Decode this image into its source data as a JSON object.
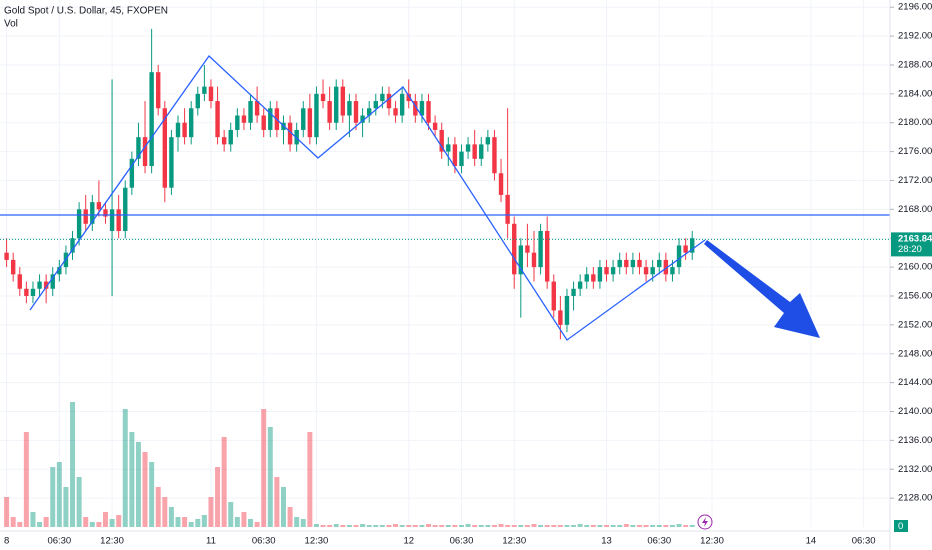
{
  "chart_data": {
    "type": "candlestick",
    "title": "Gold Spot / U.S. Dollar, 45, FXOPEN",
    "volume_title": "Vol",
    "volume_axis_label": "0",
    "last_price": 2163.84,
    "countdown": "28:20",
    "colors": {
      "up": "#089981",
      "down": "#f23645"
    },
    "grid": true,
    "ylim": [
      2124,
      2197
    ],
    "yticks": [
      {
        "value": 2128,
        "label": "2128.00"
      },
      {
        "value": 2132,
        "label": "2132.00"
      },
      {
        "value": 2136,
        "label": "2136.00"
      },
      {
        "value": 2140,
        "label": "2140.00"
      },
      {
        "value": 2144,
        "label": "2144.00"
      },
      {
        "value": 2148,
        "label": "2148.00"
      },
      {
        "value": 2152,
        "label": "2152.00"
      },
      {
        "value": 2156,
        "label": "2156.00"
      },
      {
        "value": 2160,
        "label": "2160.00"
      },
      {
        "value": 2164,
        "label": "2164.00"
      },
      {
        "value": 2168,
        "label": "2168.00"
      },
      {
        "value": 2172,
        "label": "2172.00"
      },
      {
        "value": 2176,
        "label": "2176.00"
      },
      {
        "value": 2180,
        "label": "2180.00"
      },
      {
        "value": 2184,
        "label": "2184.00"
      },
      {
        "value": 2188,
        "label": "2188.00"
      },
      {
        "value": 2192,
        "label": "2192.00"
      },
      {
        "value": 2196,
        "label": "2196.00"
      }
    ],
    "xlim": [
      0,
      135
    ],
    "xticks": [
      {
        "value": 1,
        "label": "8"
      },
      {
        "value": 9,
        "label": "06:30"
      },
      {
        "value": 17,
        "label": "12:30"
      },
      {
        "value": 32,
        "label": "11"
      },
      {
        "value": 40,
        "label": "06:30"
      },
      {
        "value": 48,
        "label": "12:30"
      },
      {
        "value": 62,
        "label": "12"
      },
      {
        "value": 70,
        "label": "06:30"
      },
      {
        "value": 78,
        "label": "12:30"
      },
      {
        "value": 92,
        "label": "13"
      },
      {
        "value": 100,
        "label": "06:30"
      },
      {
        "value": 108,
        "label": "12:30"
      },
      {
        "value": 123,
        "label": "14"
      },
      {
        "value": 131,
        "label": "06:30"
      }
    ],
    "x": [
      1,
      2,
      3,
      4,
      5,
      6,
      7,
      8,
      9,
      10,
      11,
      12,
      13,
      14,
      15,
      16,
      17,
      18,
      19,
      20,
      21,
      22,
      23,
      24,
      25,
      26,
      27,
      28,
      29,
      30,
      31,
      32,
      33,
      34,
      35,
      36,
      37,
      38,
      39,
      40,
      41,
      42,
      43,
      44,
      45,
      46,
      47,
      48,
      49,
      50,
      51,
      52,
      53,
      54,
      55,
      56,
      57,
      58,
      59,
      60,
      61,
      62,
      63,
      64,
      65,
      66,
      67,
      68,
      69,
      70,
      71,
      72,
      73,
      74,
      75,
      76,
      77,
      78,
      79,
      80,
      81,
      82,
      83,
      84,
      85,
      86,
      87,
      88,
      89,
      90,
      91,
      92,
      93,
      94,
      95,
      96,
      97,
      98,
      99,
      100,
      101,
      102,
      103,
      104,
      105
    ],
    "ohlc": [
      [
        2162,
        2164,
        2160,
        2161
      ],
      [
        2161,
        2162,
        2158,
        2159
      ],
      [
        2159,
        2160,
        2156,
        2157
      ],
      [
        2157,
        2158,
        2155,
        2156
      ],
      [
        2156,
        2158,
        2155,
        2157
      ],
      [
        2157,
        2159,
        2156,
        2158
      ],
      [
        2158,
        2159,
        2155,
        2157
      ],
      [
        2157,
        2160,
        2156,
        2159
      ],
      [
        2159,
        2161,
        2158,
        2160
      ],
      [
        2160,
        2163,
        2159,
        2162
      ],
      [
        2162,
        2165,
        2161,
        2164
      ],
      [
        2164,
        2169,
        2163,
        2168
      ],
      [
        2168,
        2170,
        2165,
        2166
      ],
      [
        2166,
        2170,
        2165,
        2169
      ],
      [
        2169,
        2172,
        2167,
        2168
      ],
      [
        2168,
        2169,
        2166,
        2167
      ],
      [
        2165,
        2186,
        2156,
        2168
      ],
      [
        2168,
        2170,
        2164,
        2165
      ],
      [
        2165,
        2172,
        2164,
        2171
      ],
      [
        2171,
        2176,
        2170,
        2175
      ],
      [
        2175,
        2180,
        2174,
        2178
      ],
      [
        2178,
        2183,
        2173,
        2174
      ],
      [
        2174,
        2193,
        2173,
        2187
      ],
      [
        2187,
        2188,
        2181,
        2182
      ],
      [
        2182,
        2183,
        2169,
        2171
      ],
      [
        2171,
        2179,
        2170,
        2178
      ],
      [
        2178,
        2181,
        2176,
        2180
      ],
      [
        2180,
        2182,
        2177,
        2178
      ],
      [
        2178,
        2183,
        2177,
        2182
      ],
      [
        2182,
        2185,
        2181,
        2184
      ],
      [
        2184,
        2188,
        2183,
        2185
      ],
      [
        2185,
        2186,
        2182,
        2183
      ],
      [
        2183,
        2185,
        2177,
        2178
      ],
      [
        2178,
        2179,
        2176,
        2177
      ],
      [
        2177,
        2180,
        2176,
        2179
      ],
      [
        2179,
        2182,
        2178,
        2181
      ],
      [
        2181,
        2182,
        2179,
        2180
      ],
      [
        2180,
        2184,
        2179,
        2183
      ],
      [
        2183,
        2185,
        2180,
        2181
      ],
      [
        2181,
        2182,
        2178,
        2179
      ],
      [
        2179,
        2183,
        2178,
        2182
      ],
      [
        2182,
        2183,
        2178,
        2179
      ],
      [
        2179,
        2181,
        2177,
        2180
      ],
      [
        2180,
        2181,
        2176,
        2177
      ],
      [
        2177,
        2180,
        2176,
        2179
      ],
      [
        2179,
        2183,
        2178,
        2182
      ],
      [
        2182,
        2184,
        2177,
        2178
      ],
      [
        2178,
        2185,
        2177,
        2184
      ],
      [
        2184,
        2186,
        2182,
        2183
      ],
      [
        2183,
        2185,
        2179,
        2180
      ],
      [
        2180,
        2186,
        2179,
        2185
      ],
      [
        2185,
        2186,
        2180,
        2181
      ],
      [
        2181,
        2184,
        2178,
        2183
      ],
      [
        2183,
        2184,
        2179,
        2180
      ],
      [
        2180,
        2182,
        2178,
        2181
      ],
      [
        2181,
        2183,
        2180,
        2182
      ],
      [
        2182,
        2184,
        2181,
        2183
      ],
      [
        2183,
        2185,
        2182,
        2184
      ],
      [
        2184,
        2185,
        2181,
        2182
      ],
      [
        2182,
        2183,
        2180,
        2181
      ],
      [
        2181,
        2185,
        2180,
        2184
      ],
      [
        2184,
        2186,
        2182,
        2183
      ],
      [
        2183,
        2184,
        2180,
        2181
      ],
      [
        2181,
        2184,
        2180,
        2183
      ],
      [
        2183,
        2184,
        2179,
        2180
      ],
      [
        2180,
        2181,
        2178,
        2179
      ],
      [
        2179,
        2180,
        2175,
        2176
      ],
      [
        2176,
        2178,
        2174,
        2177
      ],
      [
        2177,
        2178,
        2173,
        2174
      ],
      [
        2174,
        2177,
        2173,
        2176
      ],
      [
        2176,
        2178,
        2175,
        2177
      ],
      [
        2177,
        2179,
        2174,
        2175
      ],
      [
        2175,
        2178,
        2174,
        2177
      ],
      [
        2177,
        2179,
        2176,
        2178
      ],
      [
        2178,
        2179,
        2172,
        2173
      ],
      [
        2173,
        2175,
        2169,
        2170
      ],
      [
        2170,
        2182,
        2164,
        2166
      ],
      [
        2166,
        2167,
        2157,
        2159
      ],
      [
        2159,
        2164,
        2153,
        2163
      ],
      [
        2163,
        2166,
        2160,
        2162
      ],
      [
        2162,
        2165,
        2158,
        2160
      ],
      [
        2160,
        2166,
        2159,
        2165
      ],
      [
        2165,
        2167,
        2157,
        2158
      ],
      [
        2158,
        2159,
        2153,
        2154
      ],
      [
        2154,
        2156,
        2150,
        2152
      ],
      [
        2152,
        2157,
        2151,
        2156
      ],
      [
        2156,
        2158,
        2154,
        2157
      ],
      [
        2157,
        2159,
        2156,
        2158
      ],
      [
        2158,
        2160,
        2157,
        2159
      ],
      [
        2159,
        2160,
        2157,
        2158
      ],
      [
        2158,
        2161,
        2157,
        2160
      ],
      [
        2160,
        2161,
        2158,
        2159
      ],
      [
        2159,
        2161,
        2158,
        2160
      ],
      [
        2160,
        2162,
        2159,
        2161
      ],
      [
        2161,
        2162,
        2159,
        2160
      ],
      [
        2160,
        2162,
        2159,
        2161
      ],
      [
        2161,
        2162,
        2159,
        2160
      ],
      [
        2160,
        2161,
        2158,
        2159
      ],
      [
        2159,
        2161,
        2158,
        2160
      ],
      [
        2160,
        2162,
        2159,
        2161
      ],
      [
        2161,
        2162,
        2158,
        2159
      ],
      [
        2159,
        2161,
        2158,
        2160
      ],
      [
        2160,
        2164,
        2159,
        2163
      ],
      [
        2163,
        2164,
        2161,
        2162
      ],
      [
        2162,
        2165,
        2161,
        2164
      ]
    ],
    "volume": [
      30,
      10,
      5,
      95,
      15,
      5,
      10,
      60,
      65,
      40,
      125,
      50,
      10,
      5,
      5,
      15,
      8,
      12,
      118,
      95,
      85,
      75,
      65,
      40,
      30,
      20,
      10,
      10,
      5,
      8,
      12,
      30,
      60,
      90,
      25,
      10,
      15,
      8,
      5,
      118,
      100,
      50,
      40,
      20,
      10,
      8,
      95,
      3,
      2,
      2,
      3,
      2,
      2,
      2,
      3,
      2,
      2,
      2,
      2,
      3,
      2,
      2,
      2,
      2,
      3,
      2,
      2,
      2,
      2,
      2,
      3,
      2,
      2,
      2,
      2,
      3,
      2,
      2,
      2,
      2,
      3,
      2,
      2,
      2,
      2,
      2,
      2,
      3,
      2,
      2,
      2,
      2,
      2,
      2,
      3,
      2,
      2,
      2,
      2,
      2,
      2,
      2,
      3,
      2,
      2
    ]
  }
}
